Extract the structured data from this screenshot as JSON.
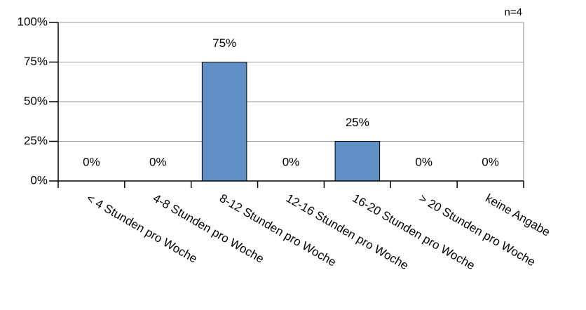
{
  "chart_data": {
    "type": "bar",
    "annotation": "n=4",
    "categories": [
      "< 4 Stunden pro Woche",
      "4-8 Stunden pro Woche",
      "8-12 Stunden pro Woche",
      "12-16 Stunden pro Woche",
      "16-20 Stunden pro Woche",
      "> 20 Stunden pro Woche",
      "keine Angabe"
    ],
    "values": [
      0,
      0,
      75,
      0,
      25,
      0,
      0
    ],
    "value_labels": [
      "0%",
      "0%",
      "75%",
      "0%",
      "25%",
      "0%",
      "0%"
    ],
    "color": "#5f8fc4",
    "ylim": [
      0,
      100
    ],
    "yticks": [
      {
        "value": 0,
        "label": "0%"
      },
      {
        "value": 25,
        "label": "25%"
      },
      {
        "value": 50,
        "label": "50%"
      },
      {
        "value": 75,
        "label": "75%"
      },
      {
        "value": 100,
        "label": "100%"
      }
    ],
    "grid": true
  }
}
